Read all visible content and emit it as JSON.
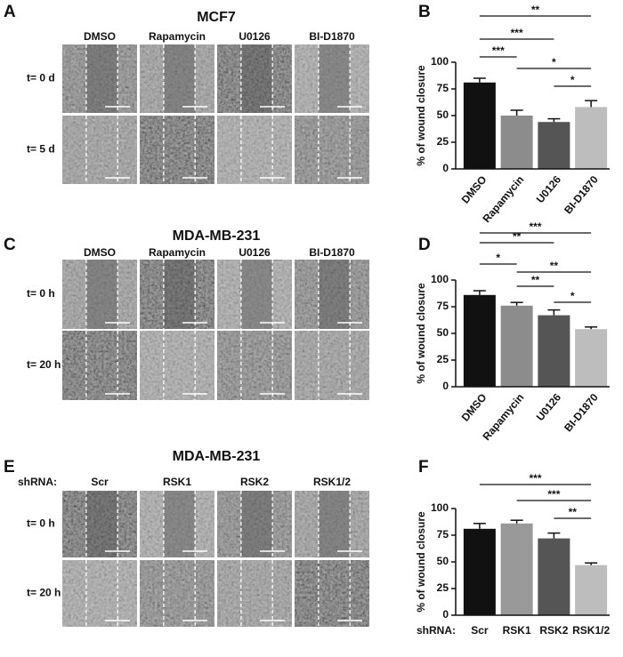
{
  "panels": [
    {
      "letter": "A",
      "title": "MCF7",
      "columns": [
        "DMSO",
        "Rapamycin",
        "U0126",
        "BI-D1870"
      ],
      "rows": [
        "t= 0 d",
        "t= 5 d"
      ]
    },
    {
      "letter": "C",
      "title": "MDA-MB-231",
      "columns": [
        "DMSO",
        "Rapamycin",
        "U0126",
        "BI-D1870"
      ],
      "rows": [
        "t= 0 h",
        "t= 20 h"
      ]
    },
    {
      "letter": "E",
      "title": "MDA-MB-231",
      "row_header": "shRNA:",
      "columns": [
        "Scr",
        "RSK1",
        "RSK2",
        "RSK1/2"
      ],
      "rows": [
        "t= 0 h",
        "t= 20 h"
      ]
    }
  ],
  "chart_data": [
    {
      "type": "bar",
      "letter": "B",
      "y_label": "% of wound closure",
      "categories": [
        "DMSO",
        "Rapamycin",
        "U0126",
        "BI-D1870"
      ],
      "values": [
        81,
        50,
        44,
        58
      ],
      "errors": [
        4,
        5,
        3,
        6
      ],
      "colors": [
        "#111111",
        "#8c8c8c",
        "#555555",
        "#bdbdbd"
      ],
      "ylim": [
        0,
        100
      ],
      "yticks": [
        0,
        25,
        50,
        75,
        100
      ],
      "annotations": [
        {
          "text": "**",
          "from": "DMSO",
          "to": "BI-D1870"
        },
        {
          "text": "***",
          "from": "DMSO",
          "to": "U0126"
        },
        {
          "text": "***",
          "from": "DMSO",
          "to": "Rapamycin"
        },
        {
          "text": "*",
          "from": "Rapamycin",
          "to": "BI-D1870"
        },
        {
          "text": "*",
          "from": "U0126",
          "to": "BI-D1870"
        }
      ]
    },
    {
      "type": "bar",
      "letter": "D",
      "y_label": "% of wound closure",
      "categories": [
        "DMSO",
        "Rapamycin",
        "U0126",
        "BI-D1870"
      ],
      "values": [
        86,
        76,
        67,
        54
      ],
      "errors": [
        4,
        3,
        5,
        2
      ],
      "colors": [
        "#111111",
        "#8c8c8c",
        "#555555",
        "#bdbdbd"
      ],
      "ylim": [
        0,
        100
      ],
      "yticks": [
        0,
        25,
        50,
        75,
        100
      ],
      "annotations": [
        {
          "text": "***",
          "from": "DMSO",
          "to": "BI-D1870"
        },
        {
          "text": "**",
          "from": "DMSO",
          "to": "U0126"
        },
        {
          "text": "*",
          "from": "DMSO",
          "to": "Rapamycin"
        },
        {
          "text": "**",
          "from": "Rapamycin",
          "to": "BI-D1870"
        },
        {
          "text": "**",
          "from": "Rapamycin",
          "to": "U0126"
        },
        {
          "text": "*",
          "from": "U0126",
          "to": "BI-D1870"
        }
      ]
    },
    {
      "type": "bar",
      "letter": "F",
      "y_label": "% of wound closure",
      "x_label": "shRNA:",
      "categories": [
        "Scr",
        "RSK1",
        "RSK2",
        "RSK1/2"
      ],
      "values": [
        81,
        86,
        72,
        47
      ],
      "errors": [
        5,
        3,
        5,
        2
      ],
      "colors": [
        "#111111",
        "#999999",
        "#555555",
        "#bdbdbd"
      ],
      "ylim": [
        0,
        100
      ],
      "yticks": [
        0,
        25,
        50,
        75,
        100
      ],
      "annotations": [
        {
          "text": "***",
          "from": "Scr",
          "to": "RSK1/2"
        },
        {
          "text": "***",
          "from": "RSK1",
          "to": "RSK1/2"
        },
        {
          "text": "**",
          "from": "RSK2",
          "to": "RSK1/2"
        }
      ]
    }
  ]
}
